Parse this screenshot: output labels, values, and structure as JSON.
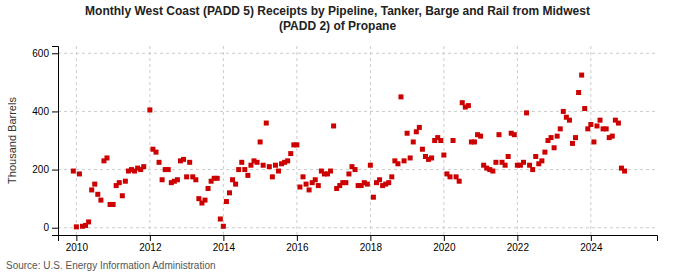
{
  "chart_data": {
    "type": "scatter",
    "title": [
      "Monthly West Coast (PADD 5) Receipts by Pipeline, Tanker, Barge and Rail from Midwest",
      "(PADD 2) of Propane"
    ],
    "y_label": "Thousand Barrels",
    "annotations": [
      "Source: U.S. Energy Information Administration"
    ],
    "color": "#cc0000",
    "marker": "square",
    "grid": true,
    "xlim": [
      2009.5,
      2025.8
    ],
    "xticks": [
      2010,
      2012,
      2014,
      2016,
      2018,
      2020,
      2022,
      2024
    ],
    "ylim": [
      -25,
      625
    ],
    "yticks": [
      0,
      200,
      400,
      600
    ],
    "x": [
      2009.917,
      2010.0,
      2010.083,
      2010.167,
      2010.25,
      2010.333,
      2010.417,
      2010.5,
      2010.583,
      2010.667,
      2010.75,
      2010.833,
      2010.917,
      2011.0,
      2011.083,
      2011.167,
      2011.25,
      2011.333,
      2011.417,
      2011.5,
      2011.583,
      2011.667,
      2011.75,
      2011.833,
      2012.0,
      2012.083,
      2012.167,
      2012.25,
      2012.333,
      2012.417,
      2012.5,
      2012.583,
      2012.667,
      2012.75,
      2012.833,
      2012.917,
      2013.0,
      2013.083,
      2013.167,
      2013.25,
      2013.333,
      2013.417,
      2013.5,
      2013.583,
      2013.667,
      2013.75,
      2013.833,
      2013.917,
      2014.0,
      2014.083,
      2014.167,
      2014.25,
      2014.333,
      2014.417,
      2014.5,
      2014.583,
      2014.667,
      2014.75,
      2014.833,
      2014.917,
      2015.0,
      2015.083,
      2015.167,
      2015.25,
      2015.333,
      2015.417,
      2015.5,
      2015.583,
      2015.667,
      2015.75,
      2015.833,
      2015.917,
      2016.0,
      2016.083,
      2016.167,
      2016.25,
      2016.333,
      2016.417,
      2016.5,
      2016.583,
      2016.667,
      2016.75,
      2016.833,
      2016.917,
      2017.0,
      2017.083,
      2017.167,
      2017.25,
      2017.333,
      2017.417,
      2017.5,
      2017.583,
      2017.667,
      2017.75,
      2017.833,
      2017.917,
      2018.0,
      2018.083,
      2018.167,
      2018.25,
      2018.333,
      2018.417,
      2018.5,
      2018.583,
      2018.667,
      2018.75,
      2018.833,
      2018.917,
      2019.0,
      2019.083,
      2019.167,
      2019.25,
      2019.333,
      2019.417,
      2019.5,
      2019.583,
      2019.667,
      2019.75,
      2019.833,
      2019.917,
      2020.0,
      2020.083,
      2020.167,
      2020.25,
      2020.333,
      2020.417,
      2020.5,
      2020.583,
      2020.667,
      2020.75,
      2020.833,
      2020.917,
      2021.0,
      2021.083,
      2021.167,
      2021.25,
      2021.333,
      2021.417,
      2021.5,
      2021.583,
      2021.667,
      2021.75,
      2021.833,
      2021.917,
      2022.0,
      2022.083,
      2022.167,
      2022.25,
      2022.333,
      2022.417,
      2022.5,
      2022.583,
      2022.667,
      2022.75,
      2022.833,
      2022.917,
      2023.0,
      2023.083,
      2023.167,
      2023.25,
      2023.333,
      2023.417,
      2023.5,
      2023.583,
      2023.667,
      2023.75,
      2023.833,
      2023.917,
      2024.0,
      2024.083,
      2024.167,
      2024.25,
      2024.333,
      2024.417,
      2024.5,
      2024.583,
      2024.667,
      2024.75,
      2024.833,
      2024.917
    ],
    "values": [
      195,
      3,
      185,
      5,
      8,
      20,
      130,
      150,
      115,
      95,
      230,
      240,
      80,
      80,
      145,
      155,
      110,
      160,
      195,
      200,
      195,
      205,
      200,
      210,
      405,
      270,
      260,
      225,
      165,
      200,
      200,
      155,
      160,
      165,
      230,
      235,
      175,
      225,
      175,
      165,
      100,
      85,
      95,
      135,
      160,
      170,
      170,
      30,
      5,
      90,
      120,
      165,
      150,
      200,
      225,
      200,
      180,
      215,
      230,
      225,
      295,
      215,
      360,
      210,
      175,
      215,
      195,
      220,
      225,
      230,
      255,
      285,
      285,
      140,
      175,
      150,
      130,
      155,
      165,
      145,
      195,
      185,
      185,
      195,
      350,
      135,
      145,
      155,
      155,
      185,
      210,
      200,
      145,
      145,
      155,
      150,
      215,
      105,
      155,
      165,
      145,
      150,
      155,
      175,
      230,
      220,
      450,
      230,
      325,
      240,
      295,
      330,
      345,
      270,
      245,
      235,
      240,
      300,
      310,
      300,
      250,
      185,
      175,
      300,
      175,
      160,
      430,
      415,
      420,
      295,
      295,
      320,
      315,
      215,
      205,
      200,
      195,
      225,
      320,
      225,
      215,
      245,
      325,
      320,
      215,
      215,
      225,
      395,
      215,
      200,
      245,
      220,
      230,
      260,
      300,
      310,
      275,
      315,
      340,
      400,
      380,
      370,
      290,
      310,
      465,
      525,
      410,
      340,
      355,
      295,
      350,
      370,
      340,
      340,
      310,
      315,
      370,
      360,
      205,
      195
    ]
  }
}
